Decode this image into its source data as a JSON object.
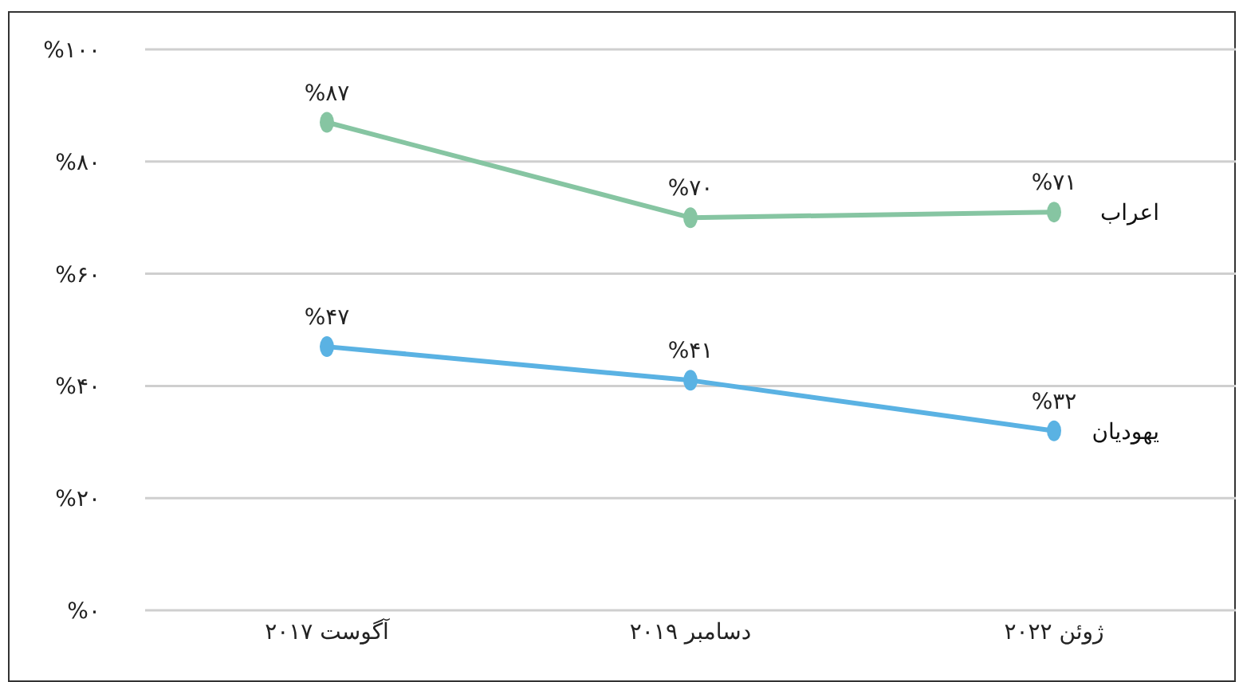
{
  "chart_data": {
    "type": "line",
    "categories": [
      "آگوست ۲۰۱۷",
      "دسامبر ۲۰۱۹",
      "ژوئن ۲۰۲۲"
    ],
    "series": [
      {
        "name": "اعراب",
        "color": "#86c5a2",
        "values": [
          87,
          70,
          71
        ],
        "value_labels": [
          "%۸۷",
          "%۷۰",
          "%۷۱"
        ]
      },
      {
        "name": "یهودیان",
        "color": "#5ab2e3",
        "values": [
          47,
          41,
          32
        ],
        "value_labels": [
          "%۴۷",
          "%۴۱",
          "%۳۲"
        ]
      }
    ],
    "ylim": [
      0,
      100
    ],
    "yticks": [
      {
        "value": 0,
        "label": "%۰"
      },
      {
        "value": 20,
        "label": "%۲۰"
      },
      {
        "value": 40,
        "label": "%۴۰"
      },
      {
        "value": 60,
        "label": "%۶۰"
      },
      {
        "value": 80,
        "label": "%۸۰"
      },
      {
        "value": 100,
        "label": "%۱۰۰"
      }
    ],
    "grid": "y",
    "marker": "circle",
    "line_style": "solid"
  }
}
